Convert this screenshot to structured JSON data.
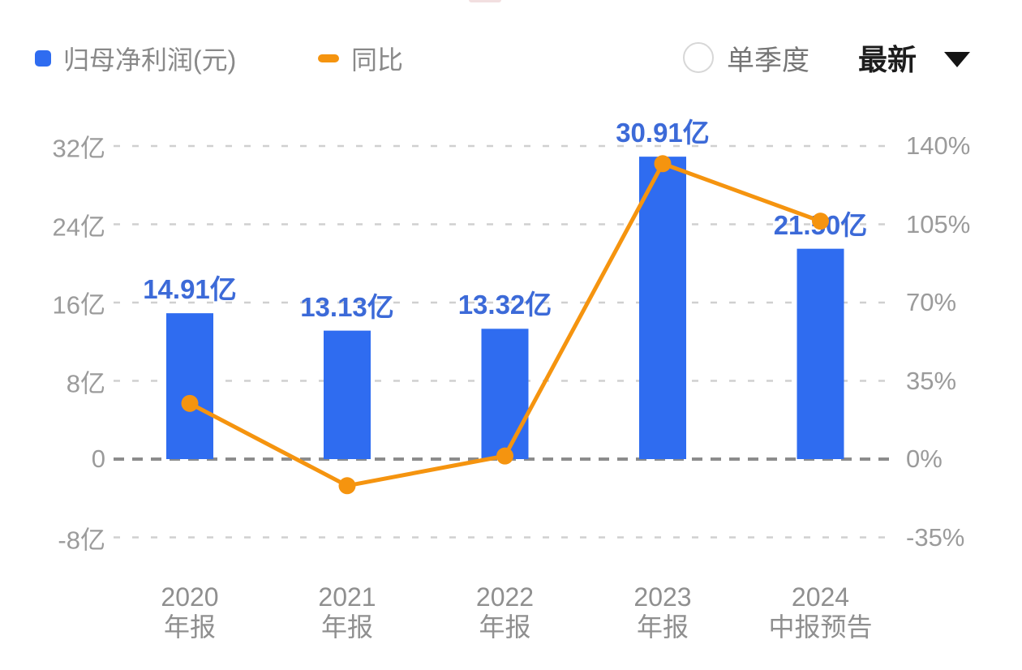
{
  "legend": {
    "items": [
      {
        "label": "归母净利润(元)",
        "marker": "square",
        "color": "#2f6cf0"
      },
      {
        "label": "同比",
        "marker": "dash",
        "color": "#f5940f"
      }
    ]
  },
  "controls": {
    "quarter_toggle_label": "单季度",
    "quarter_toggle_checked": false,
    "period_selector_value": "最新",
    "dropdown_icon": "caret-down"
  },
  "chart_data": {
    "type": "bar",
    "subtype": "bar-line-combo",
    "categories": [
      [
        "2020",
        "年报"
      ],
      [
        "2021",
        "年报"
      ],
      [
        "2022",
        "年报"
      ],
      [
        "2023",
        "年报"
      ],
      [
        "2024",
        "中报预告"
      ]
    ],
    "series": [
      {
        "name": "归母净利润(元)",
        "type": "bar",
        "unit": "亿",
        "values": [
          14.91,
          13.13,
          13.32,
          30.91,
          21.5
        ],
        "labels": [
          "14.91亿",
          "13.13亿",
          "13.32亿",
          "30.91亿",
          "21.50亿"
        ],
        "color": "#2f6cf0",
        "label_color": "#3c6ad8"
      },
      {
        "name": "同比",
        "type": "line",
        "unit": "%",
        "values": [
          24.9,
          -11.9,
          1.4,
          132.1,
          106.4
        ],
        "color": "#f5940f"
      }
    ],
    "left_axis": {
      "ticks": [
        "32亿",
        "24亿",
        "16亿",
        "8亿",
        "0",
        "-8亿"
      ],
      "values": [
        32,
        24,
        16,
        8,
        0,
        -8
      ],
      "range": [
        -8,
        32
      ]
    },
    "right_axis": {
      "ticks": [
        "140%",
        "105%",
        "70%",
        "35%",
        "0%",
        "-35%"
      ],
      "values": [
        140,
        105,
        70,
        35,
        0,
        -35
      ],
      "range": [
        -35,
        140
      ]
    },
    "grid": true,
    "grid_color": "#d0d0d0",
    "zero_line_color": "#8c8c8c",
    "legend_position": "top-left"
  }
}
